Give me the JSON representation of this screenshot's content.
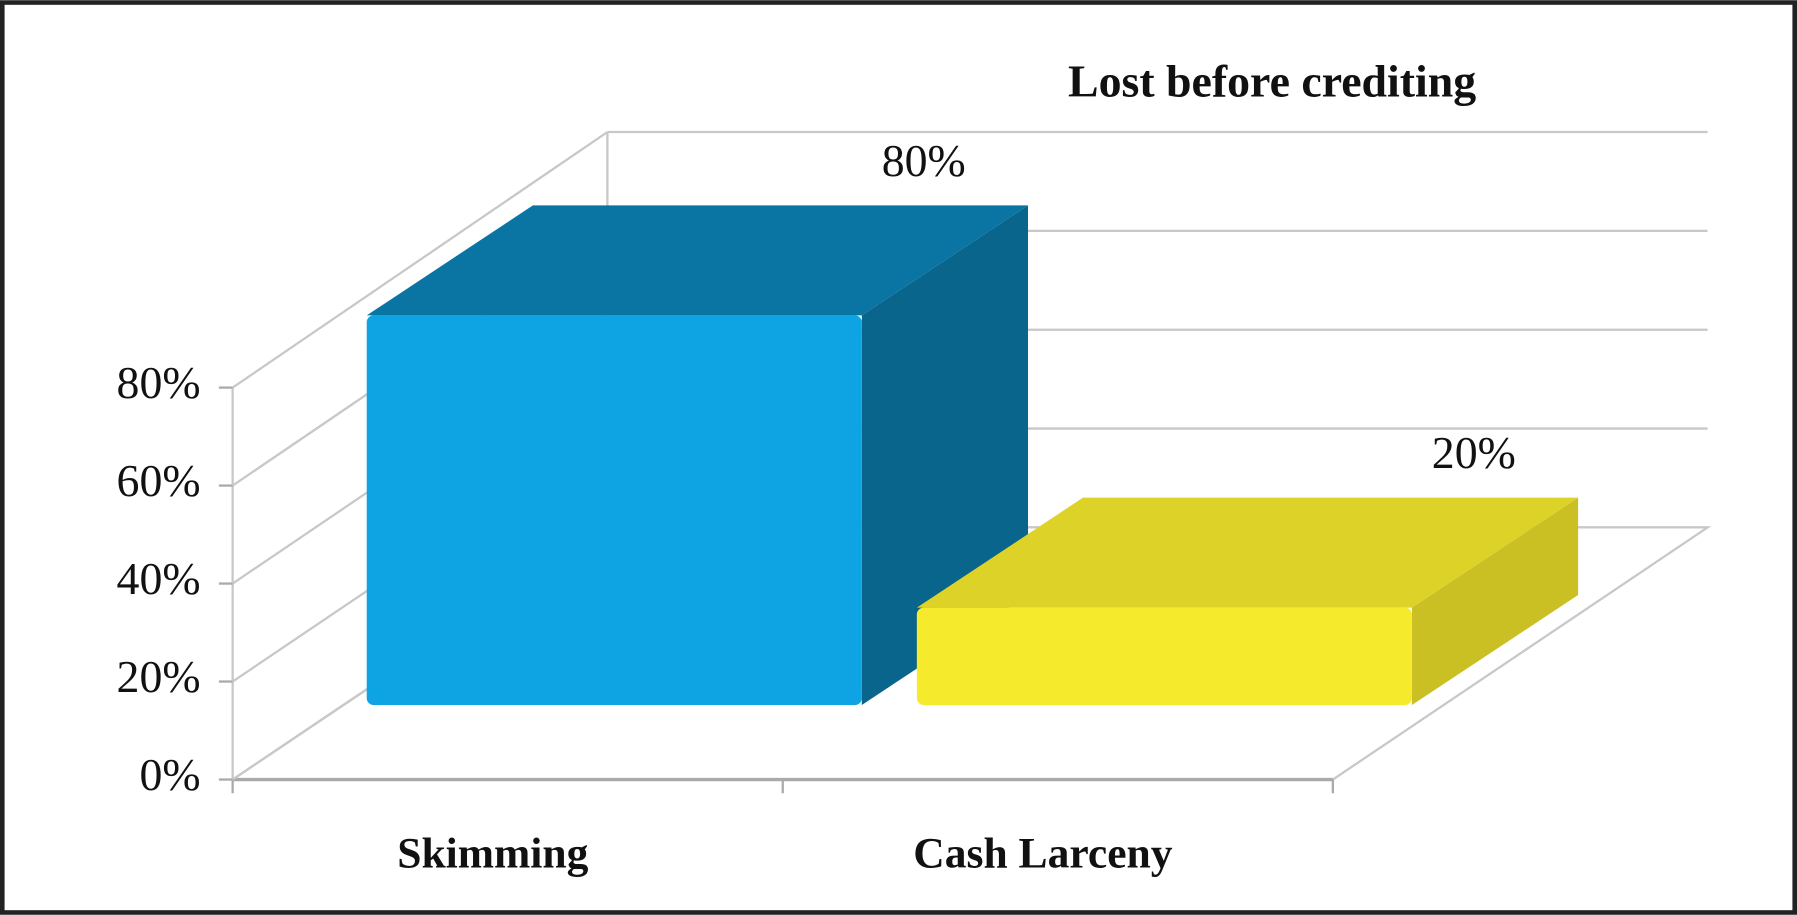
{
  "chart_data": {
    "type": "bar3d",
    "title": "Lost before crediting",
    "categories": [
      "Skimming",
      "Cash Larceny"
    ],
    "values": [
      80,
      20
    ],
    "value_labels": [
      "80%",
      "20%"
    ],
    "colors": [
      "#0ea3e2",
      "#f6ea2c"
    ],
    "ylim": [
      0,
      80
    ],
    "yticks": [
      {
        "value": 0,
        "label": "0%"
      },
      {
        "value": 20,
        "label": "20%"
      },
      {
        "value": 40,
        "label": "40%"
      },
      {
        "value": 60,
        "label": "60%"
      },
      {
        "value": 80,
        "label": "80%"
      }
    ],
    "grid": true
  }
}
